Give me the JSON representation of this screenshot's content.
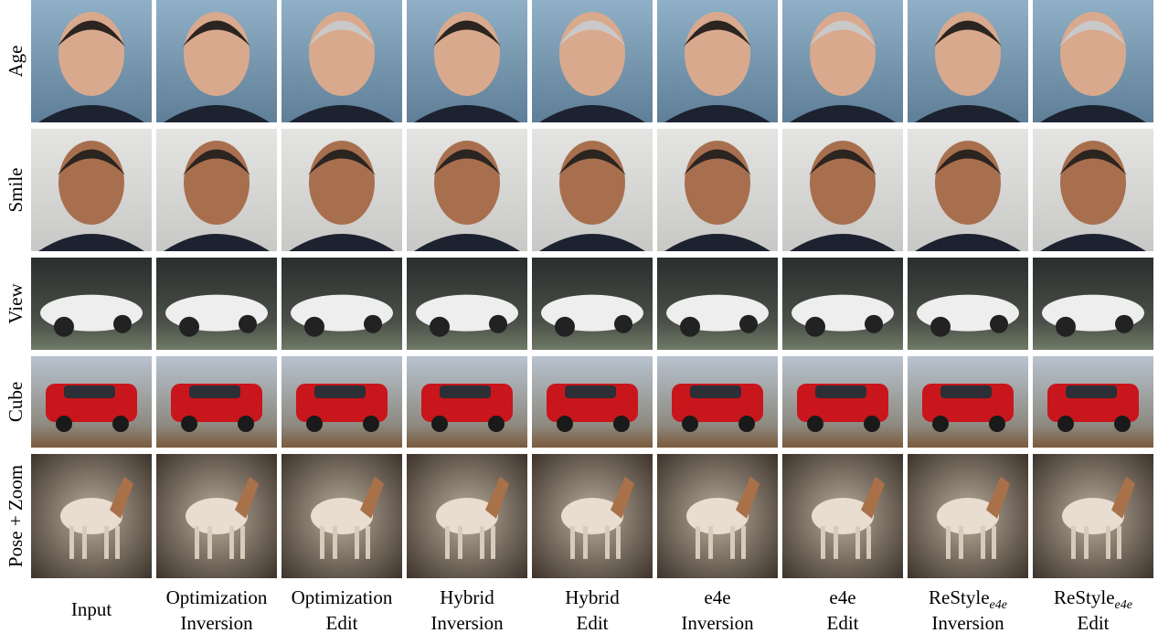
{
  "figure": {
    "rows": [
      {
        "label": "Age"
      },
      {
        "label": "Smile"
      },
      {
        "label": "View"
      },
      {
        "label": "Cube"
      },
      {
        "label": "Pose + Zoom"
      }
    ],
    "columns": [
      {
        "line1": "Input"
      },
      {
        "line1": "Optimization",
        "line2": "Inversion"
      },
      {
        "line1": "Optimization",
        "line2": "Edit"
      },
      {
        "line1": "Hybrid",
        "line2": "Inversion"
      },
      {
        "line1": "Hybrid",
        "line2": "Edit"
      },
      {
        "line1": "e4e",
        "line2": "Inversion"
      },
      {
        "line1": "e4e",
        "line2": "Edit"
      },
      {
        "line1": "ReStyle",
        "sub": "e4e",
        "line2": "Inversion"
      },
      {
        "line1": "ReStyle",
        "sub": "e4e",
        "line2": "Edit"
      }
    ]
  }
}
